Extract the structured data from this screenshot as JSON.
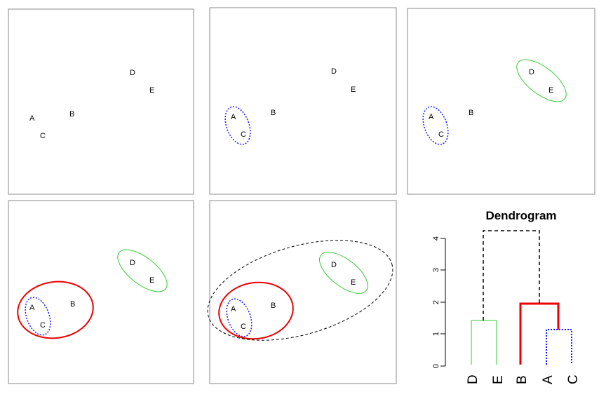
{
  "points": {
    "A": "A",
    "B": "B",
    "C": "C",
    "D": "D",
    "E": "E"
  },
  "dendrogram": {
    "title": "Dendrogram",
    "y_ticks": [
      "0",
      "1",
      "2",
      "3",
      "4"
    ],
    "leaves": [
      "D",
      "E",
      "B",
      "A",
      "C"
    ],
    "merge_heights": {
      "AC": 1.1,
      "DE": 1.4,
      "BAC": 1.9,
      "all": 4.2
    }
  },
  "colors": {
    "cluster_ac": "#1a1aff",
    "cluster_de": "#33cc33",
    "cluster_bac": "#ee0000",
    "cluster_all": "#000000"
  }
}
